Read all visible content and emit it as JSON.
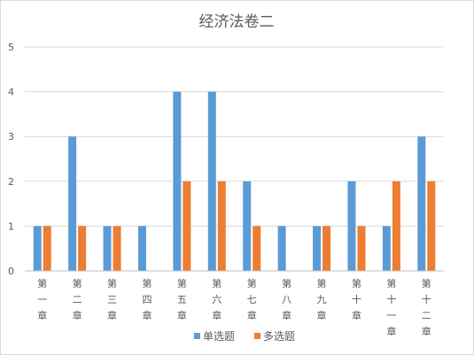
{
  "chart_data": {
    "type": "bar",
    "title": "经济法卷二",
    "xlabel": "",
    "ylabel": "",
    "ylim": [
      0,
      5
    ],
    "yticks": [
      0,
      1,
      2,
      3,
      4,
      5
    ],
    "grid": true,
    "legend_position": "bottom",
    "categories": [
      "第一章",
      "第二章",
      "第三章",
      "第四章",
      "第五章",
      "第六章",
      "第七章",
      "第八章",
      "第九章",
      "第十章",
      "第十一章",
      "第十二章"
    ],
    "series": [
      {
        "name": "单选题",
        "color": "#5b9bd5",
        "values": [
          1,
          3,
          1,
          1,
          4,
          4,
          2,
          1,
          1,
          2,
          1,
          3
        ]
      },
      {
        "name": "多选题",
        "color": "#ed7d31",
        "values": [
          1,
          1,
          1,
          0,
          2,
          2,
          1,
          0,
          1,
          1,
          2,
          2
        ]
      }
    ]
  }
}
